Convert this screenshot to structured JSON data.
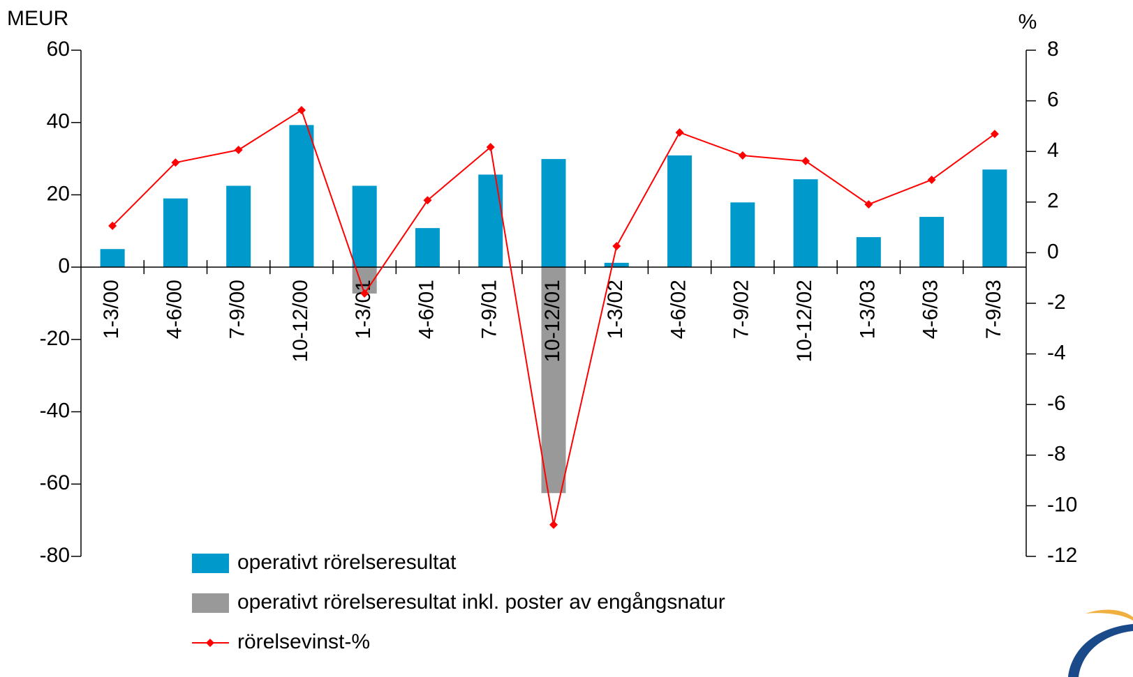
{
  "chart_data": {
    "type": "bar",
    "ylabel": "MEUR",
    "y2label": "%",
    "categories": [
      "1-3/00",
      "4-6/00",
      "7-9/00",
      "10-12/00",
      "1-3/01",
      "4-6/01",
      "7-9/01",
      "10-12/01",
      "1-3/02",
      "4-6/02",
      "7-9/02",
      "10-12/02",
      "1-3/03",
      "4-6/03",
      "7-9/03"
    ],
    "series": [
      {
        "name": "operativt rörelseresultat",
        "color": "#0099cc",
        "type": "bar",
        "values": [
          5,
          19,
          22.5,
          39.3,
          22.5,
          10.8,
          25.6,
          29.9,
          1.2,
          30.9,
          17.9,
          24.3,
          8.3,
          13.9,
          27
        ]
      },
      {
        "name": "operativt rörelseresultat inkl. poster av engångsnatur",
        "color": "#999999",
        "type": "bar",
        "values": [
          null,
          null,
          null,
          null,
          -7.3,
          null,
          null,
          -62.5,
          null,
          null,
          null,
          null,
          null,
          null,
          null
        ]
      },
      {
        "name": "rörelsevinst-%",
        "color": "#ff0000",
        "type": "line",
        "axis": "y2",
        "values": [
          1.06,
          3.56,
          4.06,
          5.63,
          -1.61,
          2.07,
          4.17,
          -10.75,
          0.26,
          4.75,
          3.84,
          3.62,
          1.91,
          2.88,
          4.69
        ]
      }
    ],
    "ylim": [
      -80,
      60
    ],
    "yticks": [
      -80,
      -60,
      -40,
      -20,
      0,
      20,
      40,
      60
    ],
    "y2lim": [
      -12,
      8
    ],
    "y2ticks": [
      -12,
      -10,
      -8,
      -6,
      -4,
      -2,
      0,
      2,
      4,
      6,
      8
    ],
    "legend": "bottom-left"
  }
}
